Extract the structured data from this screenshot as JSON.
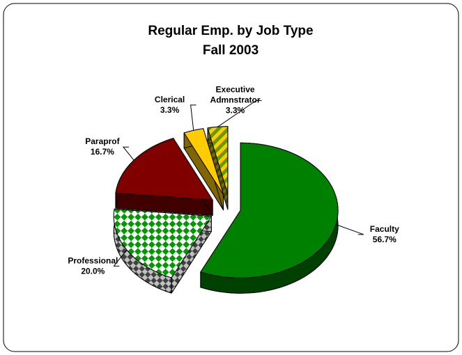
{
  "chart_data": {
    "type": "pie3d",
    "title": "Regular Emp. by Job Type",
    "subtitle": "Fall 2003",
    "categories": [
      "Faculty",
      "Professional",
      "Paraprof",
      "Clerical",
      "Executive Admnstrator"
    ],
    "values": [
      56.7,
      20.0,
      16.7,
      3.3,
      3.3
    ],
    "value_labels": [
      "56.7%",
      "20.0%",
      "16.7%",
      "3.3%",
      "3.3%"
    ],
    "colors": [
      "#008000",
      "#009900",
      "#800000",
      "#ffcc00",
      "#ffcc00"
    ]
  }
}
